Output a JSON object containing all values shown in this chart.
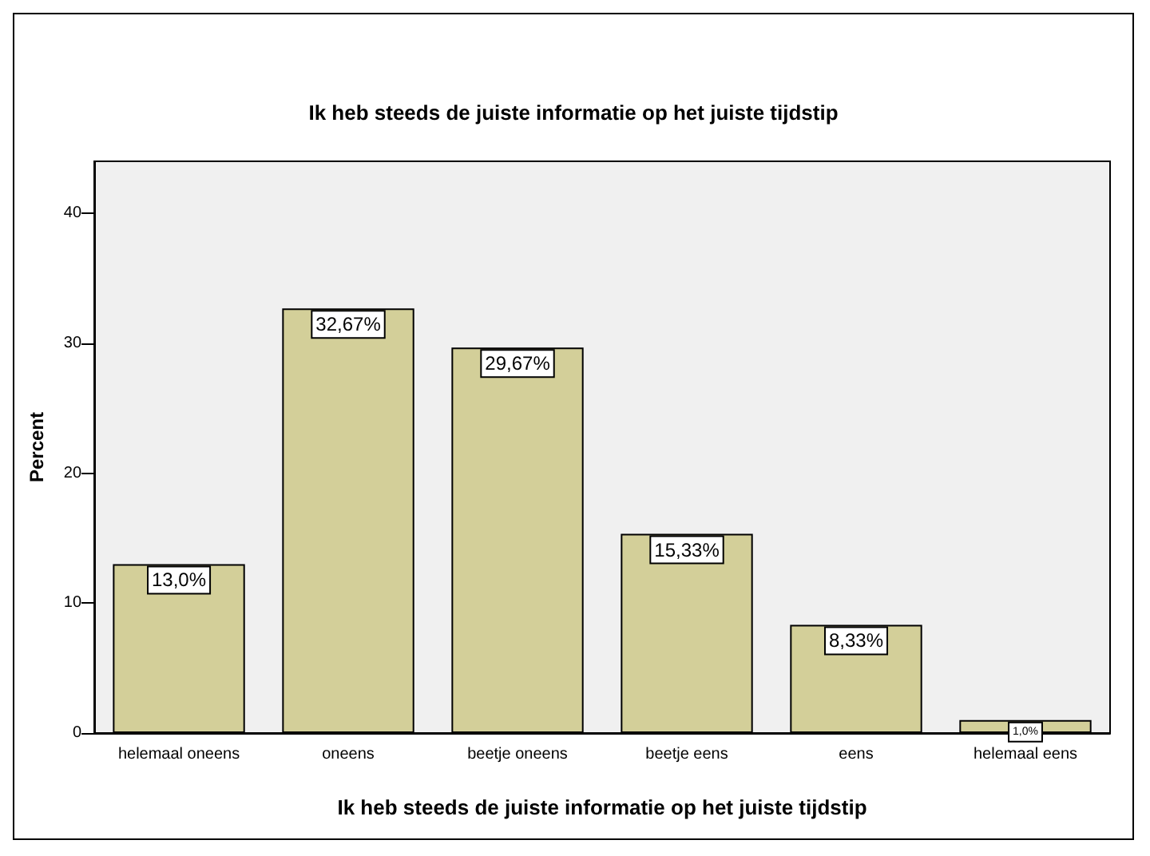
{
  "chart_data": {
    "type": "bar",
    "title": "Ik heb steeds de juiste informatie op het juiste tijdstip",
    "xlabel": "Ik heb steeds de juiste informatie op het juiste tijdstip",
    "ylabel": "Percent",
    "categories": [
      "helemaal oneens",
      "oneens",
      "beetje oneens",
      "beetje eens",
      "eens",
      "helemaal eens"
    ],
    "values": [
      13.0,
      32.67,
      29.67,
      15.33,
      8.33,
      1.0
    ],
    "value_labels": [
      "13,0%",
      "32,67%",
      "29,67%",
      "15,33%",
      "8,33%",
      "1,0%"
    ],
    "color": "#d3cf99",
    "ylim": [
      0,
      44
    ],
    "yticks": [
      0,
      10,
      20,
      30,
      40
    ]
  }
}
